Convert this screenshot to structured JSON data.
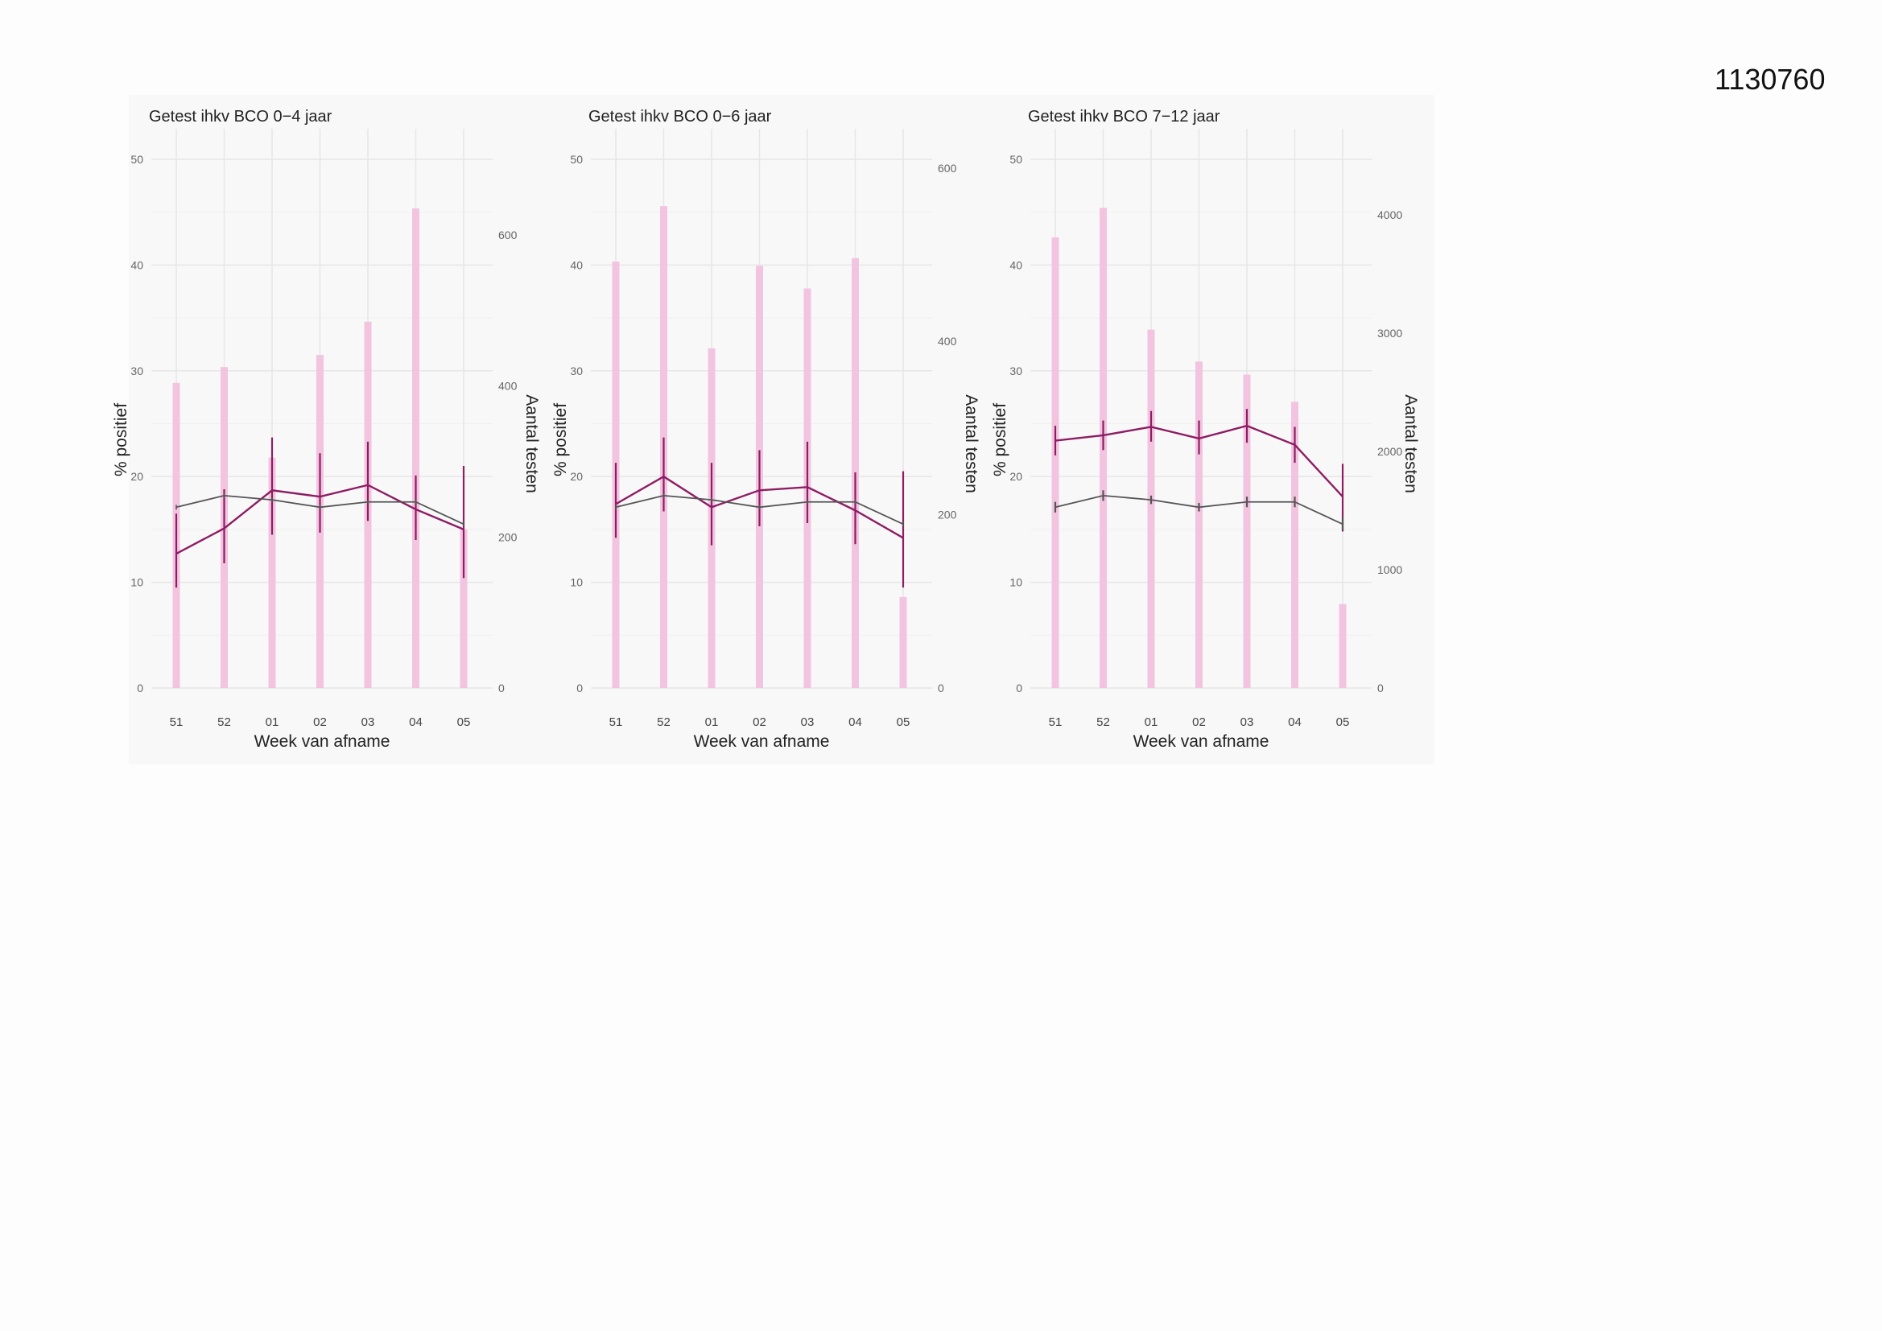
{
  "document_id": "1130760",
  "colors": {
    "bar": "#f2c4e0",
    "line_main": "#8e1d63",
    "line_ref": "#555555",
    "grid": "#e6e6e6"
  },
  "chart_data": [
    {
      "type": "bar",
      "title": "Getest ihkv BCO 0−4 jaar",
      "xlabel": "Week van afname",
      "ylabel": "% positief",
      "y2label": "Aantal testen",
      "categories": [
        "51",
        "52",
        "01",
        "02",
        "03",
        "04",
        "05"
      ],
      "ylim": [
        0,
        50
      ],
      "yticks": [
        0,
        10,
        20,
        30,
        40,
        50
      ],
      "y2lim": [
        0,
        700
      ],
      "y2ticks": [
        0,
        200,
        400,
        600
      ],
      "grid": true,
      "series": [
        {
          "kind": "bar",
          "axis": "right",
          "values": [
            404,
            425,
            305,
            441,
            485,
            635,
            210
          ]
        },
        {
          "kind": "line",
          "axis": "left",
          "color": "main",
          "values": [
            12.7,
            15.1,
            18.7,
            18.1,
            19.2,
            16.9,
            15.0
          ],
          "err_low": [
            9.5,
            11.8,
            14.5,
            14.7,
            15.8,
            14.0,
            10.4
          ],
          "err_high": [
            16.5,
            18.8,
            23.7,
            22.2,
            23.3,
            20.1,
            21.0
          ]
        },
        {
          "kind": "line",
          "axis": "left",
          "color": "ref",
          "values": [
            17.1,
            18.2,
            17.8,
            17.1,
            17.6,
            17.6,
            15.5
          ]
        }
      ]
    },
    {
      "type": "bar",
      "title": "Getest ihkv BCO 0−6 jaar",
      "xlabel": "Week van afname",
      "ylabel": "% positief",
      "y2label": "Aantal testen",
      "categories": [
        "51",
        "52",
        "01",
        "02",
        "03",
        "04",
        "05"
      ],
      "ylim": [
        0,
        50
      ],
      "yticks": [
        0,
        10,
        20,
        30,
        40,
        50
      ],
      "y2lim": [
        0,
        610
      ],
      "y2ticks": [
        0,
        200,
        400,
        600
      ],
      "grid": true,
      "series": [
        {
          "kind": "bar",
          "axis": "right",
          "values": [
            492,
            556,
            392,
            487,
            461,
            496,
            105
          ]
        },
        {
          "kind": "line",
          "axis": "left",
          "color": "main",
          "values": [
            17.4,
            20.0,
            17.1,
            18.7,
            19.0,
            16.8,
            14.2
          ],
          "err_low": [
            14.2,
            16.7,
            13.5,
            15.3,
            15.6,
            13.6,
            9.5
          ],
          "err_high": [
            21.3,
            23.7,
            21.3,
            22.5,
            23.3,
            20.4,
            20.5
          ]
        },
        {
          "kind": "line",
          "axis": "left",
          "color": "ref",
          "values": [
            17.1,
            18.2,
            17.8,
            17.1,
            17.6,
            17.6,
            15.5
          ]
        }
      ]
    },
    {
      "type": "bar",
      "title": "Getest ihkv BCO 7−12 jaar",
      "xlabel": "Week van afname",
      "ylabel": "% positief",
      "y2label": "Aantal testen",
      "categories": [
        "51",
        "52",
        "01",
        "02",
        "03",
        "04",
        "05"
      ],
      "ylim": [
        0,
        50
      ],
      "yticks": [
        0,
        10,
        20,
        30,
        40,
        50
      ],
      "y2lim": [
        0,
        4470
      ],
      "y2ticks": [
        0,
        1000,
        2000,
        3000,
        4000
      ],
      "grid": true,
      "series": [
        {
          "kind": "bar",
          "axis": "right",
          "values": [
            3810,
            4060,
            3030,
            2760,
            2650,
            2420,
            710
          ]
        },
        {
          "kind": "line",
          "axis": "left",
          "color": "main",
          "values": [
            23.4,
            23.9,
            24.7,
            23.6,
            24.8,
            23.0,
            18.1
          ],
          "err_low": [
            22.0,
            22.5,
            23.3,
            22.1,
            23.2,
            21.3,
            14.8
          ],
          "err_high": [
            24.8,
            25.3,
            26.2,
            25.3,
            26.4,
            24.7,
            21.2
          ]
        },
        {
          "kind": "line",
          "axis": "left",
          "color": "ref",
          "values": [
            17.1,
            18.2,
            17.8,
            17.1,
            17.6,
            17.6,
            15.5
          ],
          "err_low": [
            16.6,
            17.7,
            17.4,
            16.7,
            17.1,
            17.1,
            14.9
          ],
          "err_high": [
            17.6,
            18.7,
            18.2,
            17.5,
            18.1,
            18.1,
            16.1
          ]
        }
      ]
    }
  ]
}
